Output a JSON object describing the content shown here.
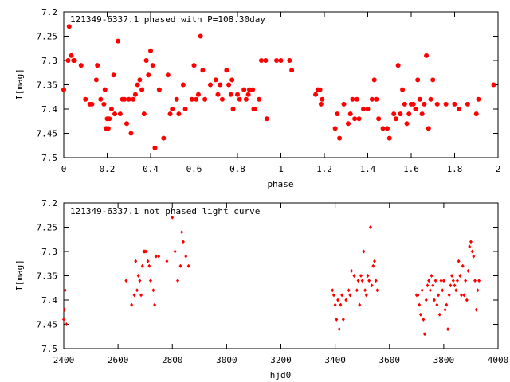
{
  "colors": {
    "series": "#ff0000",
    "axis": "#000000",
    "background": "#ffffff"
  },
  "chart_data": [
    {
      "type": "scatter",
      "title": "121349-6337.1 phased with P=108.30day",
      "xlabel": "phase",
      "ylabel": "I[mag]",
      "xlim": [
        0,
        2
      ],
      "ylim": [
        7.5,
        7.2
      ],
      "y_inverted": true,
      "grid": false,
      "legend": "none",
      "marker": "filled-circle",
      "x_ticks": [
        "0",
        "0.2",
        "0.4",
        "0.6",
        "0.8",
        "1",
        "1.2",
        "1.4",
        "1.6",
        "1.8",
        "2"
      ],
      "y_ticks": [
        "7.2",
        "7.25",
        "7.3",
        "7.35",
        "7.4",
        "7.45",
        "7.5"
      ],
      "points": [
        [
          0.0,
          7.36
        ],
        [
          0.02,
          7.3
        ],
        [
          0.025,
          7.23
        ],
        [
          0.035,
          7.29
        ],
        [
          0.045,
          7.3
        ],
        [
          0.05,
          7.3
        ],
        [
          0.08,
          7.31
        ],
        [
          0.1,
          7.38
        ],
        [
          0.12,
          7.39
        ],
        [
          0.13,
          7.39
        ],
        [
          0.15,
          7.34
        ],
        [
          0.155,
          7.31
        ],
        [
          0.17,
          7.38
        ],
        [
          0.185,
          7.39
        ],
        [
          0.19,
          7.36
        ],
        [
          0.195,
          7.44
        ],
        [
          0.2,
          7.42
        ],
        [
          0.205,
          7.44
        ],
        [
          0.21,
          7.42
        ],
        [
          0.22,
          7.4
        ],
        [
          0.23,
          7.33
        ],
        [
          0.235,
          7.41
        ],
        [
          0.25,
          7.26
        ],
        [
          0.26,
          7.41
        ],
        [
          0.27,
          7.38
        ],
        [
          0.28,
          7.38
        ],
        [
          0.29,
          7.43
        ],
        [
          0.3,
          7.38
        ],
        [
          0.31,
          7.45
        ],
        [
          0.32,
          7.38
        ],
        [
          0.33,
          7.37
        ],
        [
          0.34,
          7.35
        ],
        [
          0.35,
          7.34
        ],
        [
          0.36,
          7.36
        ],
        [
          0.37,
          7.41
        ],
        [
          0.38,
          7.3
        ],
        [
          0.39,
          7.33
        ],
        [
          0.4,
          7.28
        ],
        [
          0.41,
          7.31
        ],
        [
          0.42,
          7.48
        ],
        [
          0.44,
          7.36
        ],
        [
          0.46,
          7.46
        ],
        [
          0.48,
          7.33
        ],
        [
          0.49,
          7.41
        ],
        [
          0.5,
          7.4
        ],
        [
          0.52,
          7.38
        ],
        [
          0.53,
          7.41
        ],
        [
          0.55,
          7.35
        ],
        [
          0.56,
          7.4
        ],
        [
          0.59,
          7.38
        ],
        [
          0.6,
          7.31
        ],
        [
          0.61,
          7.38
        ],
        [
          0.62,
          7.37
        ],
        [
          0.63,
          7.25
        ],
        [
          0.64,
          7.32
        ],
        [
          0.65,
          7.38
        ],
        [
          0.675,
          7.35
        ],
        [
          0.7,
          7.34
        ],
        [
          0.71,
          7.37
        ],
        [
          0.72,
          7.35
        ],
        [
          0.73,
          7.38
        ],
        [
          0.75,
          7.32
        ],
        [
          0.76,
          7.35
        ],
        [
          0.77,
          7.37
        ],
        [
          0.775,
          7.34
        ],
        [
          0.78,
          7.4
        ],
        [
          0.8,
          7.37
        ],
        [
          0.81,
          7.38
        ],
        [
          0.83,
          7.36
        ],
        [
          0.84,
          7.38
        ],
        [
          0.85,
          7.37
        ],
        [
          0.855,
          7.36
        ],
        [
          0.87,
          7.36
        ],
        [
          0.875,
          7.4
        ],
        [
          0.88,
          7.4
        ],
        [
          0.9,
          7.38
        ],
        [
          0.91,
          7.3
        ],
        [
          0.93,
          7.3
        ],
        [
          0.935,
          7.42
        ],
        [
          0.98,
          7.3
        ],
        [
          1.0,
          7.3
        ],
        [
          1.04,
          7.3
        ],
        [
          1.05,
          7.32
        ],
        [
          1.16,
          7.37
        ],
        [
          1.17,
          7.36
        ],
        [
          1.18,
          7.36
        ],
        [
          1.185,
          7.39
        ],
        [
          1.19,
          7.38
        ],
        [
          1.25,
          7.44
        ],
        [
          1.26,
          7.41
        ],
        [
          1.27,
          7.46
        ],
        [
          1.29,
          7.39
        ],
        [
          1.31,
          7.43
        ],
        [
          1.32,
          7.41
        ],
        [
          1.33,
          7.38
        ],
        [
          1.34,
          7.42
        ],
        [
          1.35,
          7.38
        ],
        [
          1.36,
          7.42
        ],
        [
          1.38,
          7.4
        ],
        [
          1.4,
          7.4
        ],
        [
          1.42,
          7.38
        ],
        [
          1.43,
          7.34
        ],
        [
          1.44,
          7.38
        ],
        [
          1.45,
          7.42
        ],
        [
          1.47,
          7.44
        ],
        [
          1.49,
          7.44
        ],
        [
          1.5,
          7.46
        ],
        [
          1.52,
          7.41
        ],
        [
          1.53,
          7.42
        ],
        [
          1.54,
          7.31
        ],
        [
          1.55,
          7.41
        ],
        [
          1.56,
          7.36
        ],
        [
          1.57,
          7.39
        ],
        [
          1.58,
          7.43
        ],
        [
          1.59,
          7.41
        ],
        [
          1.6,
          7.39
        ],
        [
          1.61,
          7.39
        ],
        [
          1.62,
          7.4
        ],
        [
          1.63,
          7.34
        ],
        [
          1.64,
          7.38
        ],
        [
          1.65,
          7.41
        ],
        [
          1.66,
          7.39
        ],
        [
          1.67,
          7.29
        ],
        [
          1.68,
          7.44
        ],
        [
          1.69,
          7.38
        ],
        [
          1.7,
          7.34
        ],
        [
          1.72,
          7.39
        ],
        [
          1.76,
          7.39
        ],
        [
          1.8,
          7.39
        ],
        [
          1.82,
          7.4
        ],
        [
          1.86,
          7.39
        ],
        [
          1.9,
          7.41
        ],
        [
          1.91,
          7.38
        ],
        [
          1.98,
          7.35
        ]
      ]
    },
    {
      "type": "scatter",
      "title": "121349-6337.1 not phased light curve",
      "xlabel": "hjd0",
      "ylabel": "I[mag]",
      "xlim": [
        2400,
        4000
      ],
      "ylim": [
        7.5,
        7.2
      ],
      "y_inverted": true,
      "grid": false,
      "legend": "none",
      "marker": "small-diamond",
      "x_ticks": [
        "2400",
        "2600",
        "2800",
        "3000",
        "3200",
        "3400",
        "3600",
        "3800",
        "4000"
      ],
      "y_ticks": [
        "7.2",
        "7.25",
        "7.3",
        "7.35",
        "7.4",
        "7.45",
        "7.5"
      ],
      "points": [
        [
          2400,
          7.44
        ],
        [
          2402,
          7.42
        ],
        [
          2405,
          7.38
        ],
        [
          2410,
          7.45
        ],
        [
          2630,
          7.36
        ],
        [
          2650,
          7.41
        ],
        [
          2660,
          7.39
        ],
        [
          2665,
          7.32
        ],
        [
          2670,
          7.38
        ],
        [
          2675,
          7.35
        ],
        [
          2680,
          7.36
        ],
        [
          2685,
          7.39
        ],
        [
          2690,
          7.33
        ],
        [
          2695,
          7.3
        ],
        [
          2698,
          7.3
        ],
        [
          2700,
          7.3
        ],
        [
          2705,
          7.3
        ],
        [
          2710,
          7.32
        ],
        [
          2715,
          7.33
        ],
        [
          2720,
          7.36
        ],
        [
          2730,
          7.38
        ],
        [
          2735,
          7.41
        ],
        [
          2740,
          7.31
        ],
        [
          2750,
          7.31
        ],
        [
          2780,
          7.32
        ],
        [
          2800,
          7.23
        ],
        [
          2810,
          7.3
        ],
        [
          2820,
          7.36
        ],
        [
          2830,
          7.33
        ],
        [
          2835,
          7.26
        ],
        [
          2840,
          7.28
        ],
        [
          2850,
          7.31
        ],
        [
          2860,
          7.33
        ],
        [
          3390,
          7.38
        ],
        [
          3395,
          7.39
        ],
        [
          3400,
          7.41
        ],
        [
          3405,
          7.44
        ],
        [
          3410,
          7.4
        ],
        [
          3415,
          7.46
        ],
        [
          3420,
          7.41
        ],
        [
          3425,
          7.39
        ],
        [
          3430,
          7.44
        ],
        [
          3440,
          7.4
        ],
        [
          3450,
          7.38
        ],
        [
          3455,
          7.39
        ],
        [
          3460,
          7.34
        ],
        [
          3470,
          7.35
        ],
        [
          3480,
          7.38
        ],
        [
          3485,
          7.36
        ],
        [
          3490,
          7.41
        ],
        [
          3495,
          7.35
        ],
        [
          3500,
          7.36
        ],
        [
          3505,
          7.3
        ],
        [
          3510,
          7.38
        ],
        [
          3515,
          7.39
        ],
        [
          3520,
          7.35
        ],
        [
          3525,
          7.36
        ],
        [
          3530,
          7.25
        ],
        [
          3535,
          7.37
        ],
        [
          3540,
          7.33
        ],
        [
          3545,
          7.32
        ],
        [
          3550,
          7.36
        ],
        [
          3555,
          7.38
        ],
        [
          3700,
          7.39
        ],
        [
          3705,
          7.39
        ],
        [
          3710,
          7.41
        ],
        [
          3715,
          7.43
        ],
        [
          3720,
          7.38
        ],
        [
          3725,
          7.44
        ],
        [
          3730,
          7.47
        ],
        [
          3735,
          7.4
        ],
        [
          3740,
          7.37
        ],
        [
          3745,
          7.36
        ],
        [
          3750,
          7.38
        ],
        [
          3755,
          7.35
        ],
        [
          3760,
          7.37
        ],
        [
          3765,
          7.4
        ],
        [
          3770,
          7.36
        ],
        [
          3775,
          7.41
        ],
        [
          3780,
          7.39
        ],
        [
          3785,
          7.43
        ],
        [
          3790,
          7.36
        ],
        [
          3795,
          7.38
        ],
        [
          3800,
          7.36
        ],
        [
          3805,
          7.42
        ],
        [
          3810,
          7.41
        ],
        [
          3815,
          7.46
        ],
        [
          3820,
          7.39
        ],
        [
          3825,
          7.37
        ],
        [
          3830,
          7.35
        ],
        [
          3835,
          7.36
        ],
        [
          3840,
          7.37
        ],
        [
          3845,
          7.38
        ],
        [
          3850,
          7.36
        ],
        [
          3855,
          7.32
        ],
        [
          3860,
          7.35
        ],
        [
          3865,
          7.39
        ],
        [
          3870,
          7.33
        ],
        [
          3875,
          7.39
        ],
        [
          3880,
          7.36
        ],
        [
          3885,
          7.4
        ],
        [
          3890,
          7.34
        ],
        [
          3895,
          7.29
        ],
        [
          3900,
          7.28
        ],
        [
          3905,
          7.3
        ],
        [
          3910,
          7.31
        ],
        [
          3915,
          7.36
        ],
        [
          3920,
          7.42
        ],
        [
          3925,
          7.38
        ],
        [
          3930,
          7.36
        ]
      ]
    }
  ]
}
